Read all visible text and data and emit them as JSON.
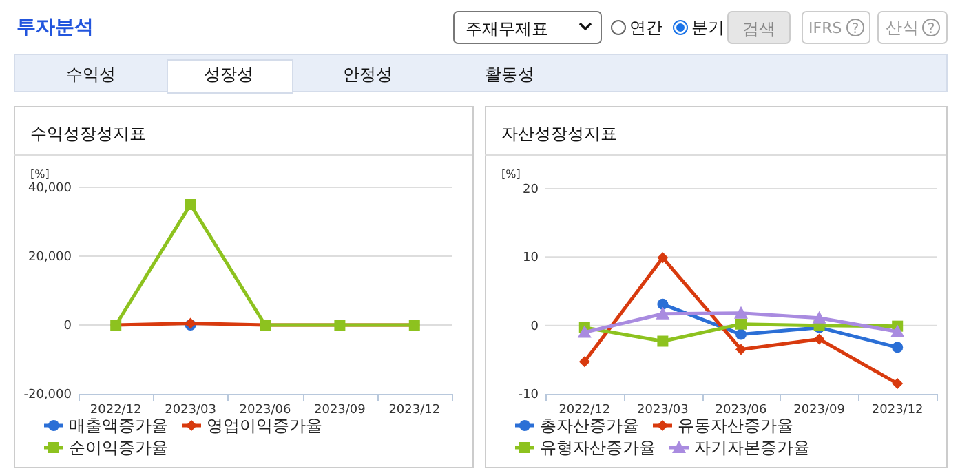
{
  "chart_data": [
    {
      "type": "other",
      "title": "투자분석",
      "annotations": [
        "주재무제표",
        "연간",
        "분기",
        "검색",
        "IFRS",
        "?",
        "산식",
        "?",
        "수익성",
        "성장성",
        "안정성",
        "활동성"
      ]
    },
    {
      "type": "line",
      "title": "수익성장성지표",
      "ylabel": "[%]",
      "categories": [
        "2022/12",
        "2023/03",
        "2023/06",
        "2023/09",
        "2023/12"
      ],
      "ylim": [
        -20000,
        40000
      ],
      "yticks": [
        {
          "value": -20000,
          "label": "-20,000"
        },
        0,
        {
          "value": 20000,
          "label": "20,000"
        },
        {
          "value": 40000,
          "label": "40,000"
        }
      ],
      "grid": "y",
      "legend": "bottom",
      "series": [
        {
          "name": "매출액증가율",
          "color": "#2b6fd6",
          "marker": "circle",
          "values": [
            null,
            0,
            null,
            null,
            null
          ]
        },
        {
          "name": "영업이익증가율",
          "color": "#d83a0e",
          "marker": "diamond",
          "values": [
            0,
            500,
            0,
            0,
            0
          ]
        },
        {
          "name": "순이익증가율",
          "color": "#8dc21f",
          "marker": "square",
          "values": [
            0,
            35000,
            0,
            0,
            0
          ]
        }
      ]
    },
    {
      "type": "line",
      "title": "자산성장성지표",
      "ylabel": "[%]",
      "categories": [
        "2022/12",
        "2023/03",
        "2023/06",
        "2023/09",
        "2023/12"
      ],
      "ylim": [
        -10,
        20
      ],
      "yticks": [
        -10,
        0,
        10,
        20
      ],
      "grid": "y",
      "legend": "bottom",
      "series": [
        {
          "name": "총자산증가율",
          "color": "#2b6fd6",
          "marker": "circle",
          "values": [
            null,
            3.1,
            -1.3,
            -0.3,
            -3.2
          ]
        },
        {
          "name": "유동자산증가율",
          "color": "#d83a0e",
          "marker": "diamond",
          "values": [
            -5.3,
            9.9,
            -3.5,
            -2.0,
            -8.5
          ]
        },
        {
          "name": "유형자산증가율",
          "color": "#8dc21f",
          "marker": "square",
          "values": [
            -0.3,
            -2.3,
            0.2,
            0.0,
            -0.1
          ]
        },
        {
          "name": "자기자본증가율",
          "color": "#a98be0",
          "marker": "triangle",
          "values": [
            -1.0,
            1.7,
            1.8,
            1.1,
            -0.9
          ]
        }
      ]
    }
  ]
}
